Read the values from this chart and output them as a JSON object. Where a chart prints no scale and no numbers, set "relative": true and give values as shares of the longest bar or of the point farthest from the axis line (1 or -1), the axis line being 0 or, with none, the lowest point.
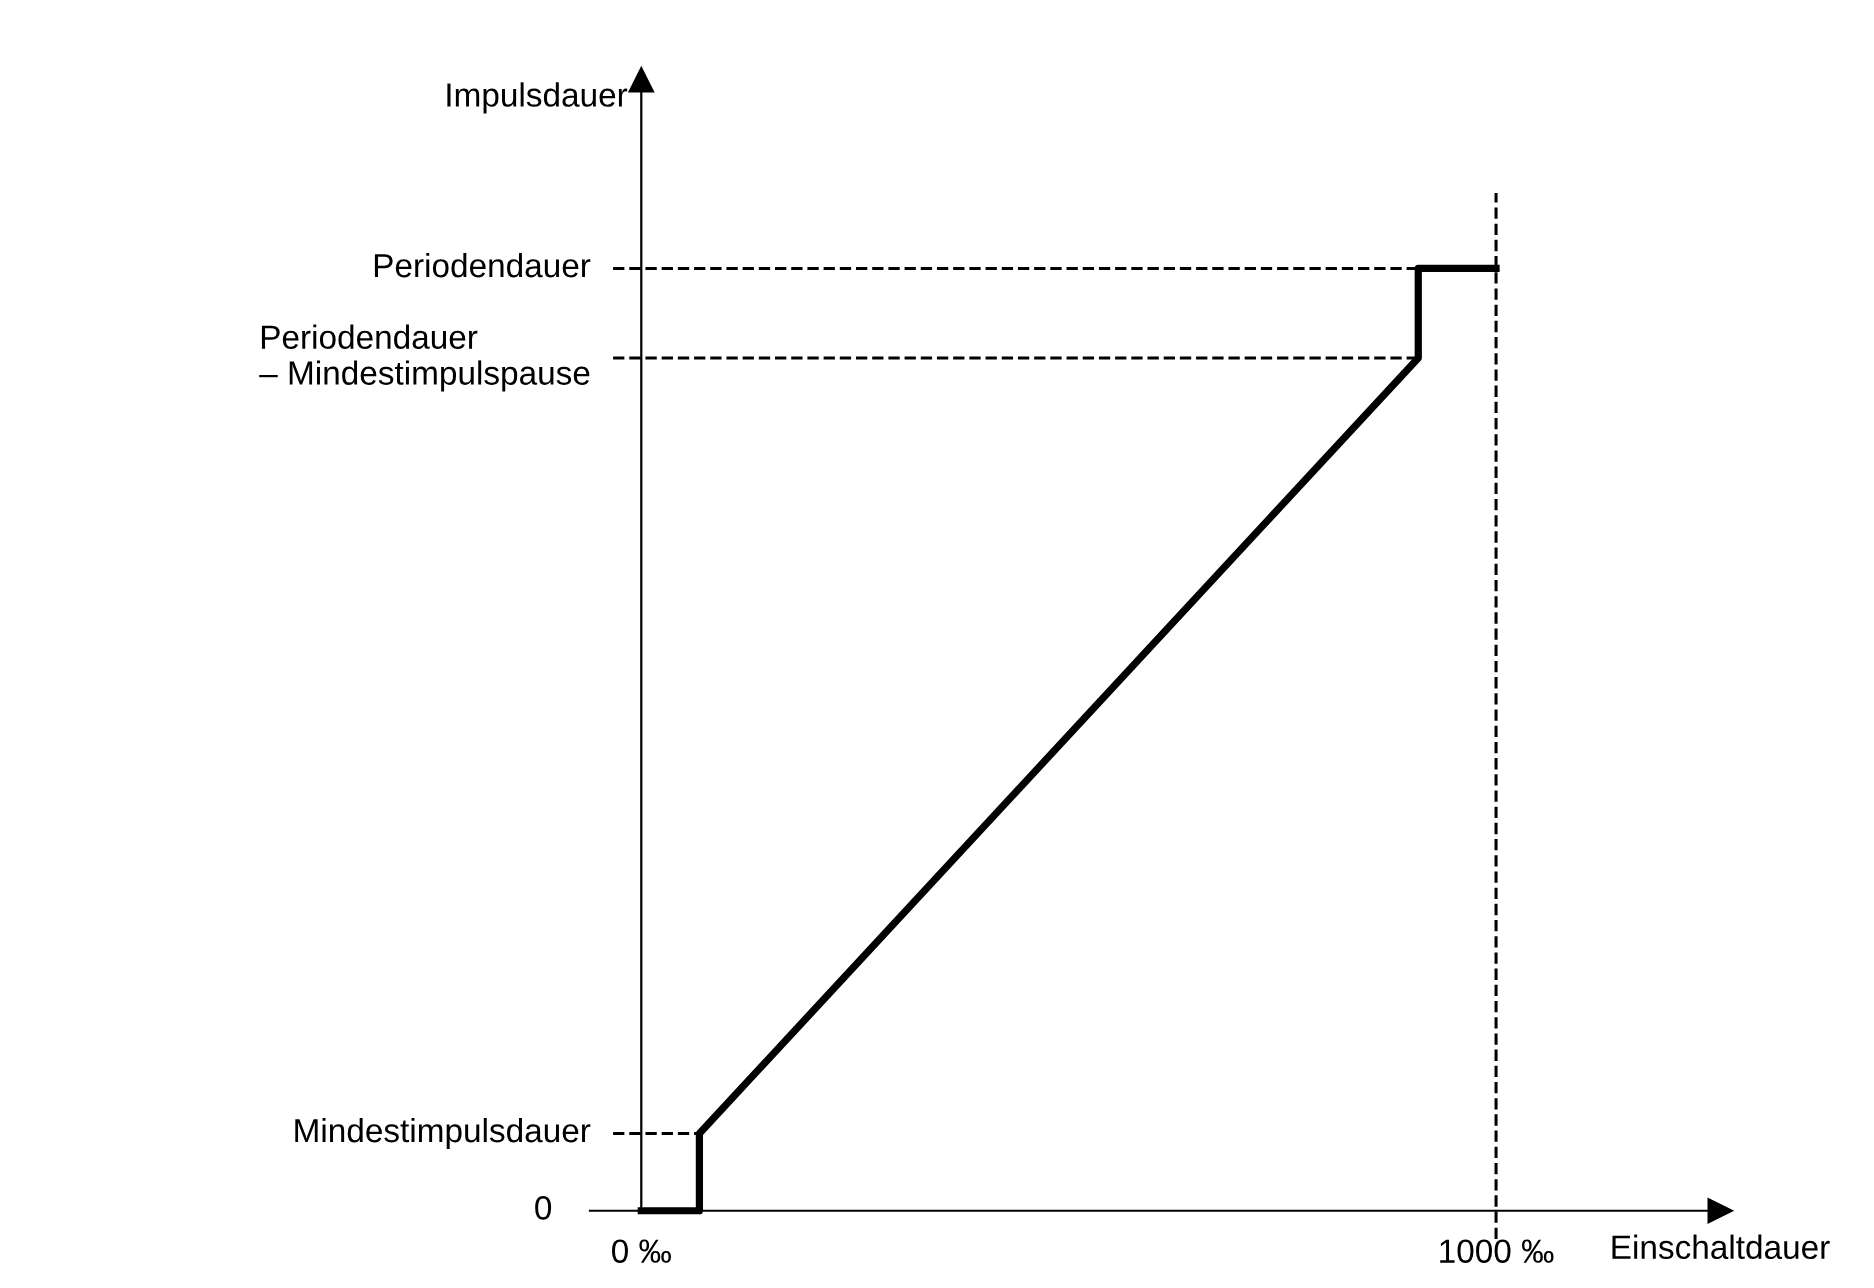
{
  "chart_data": {
    "type": "line",
    "relative": true,
    "xlabel": "Einschaltdauer",
    "ylabel": "Impulsdauer",
    "x": [
      0,
      68,
      68,
      909,
      909,
      1000
    ],
    "series": [
      {
        "color": "#000000",
        "values": [
          0,
          0,
          0.082,
          0.905,
          1,
          1
        ]
      }
    ],
    "xlim": [
      -60,
      1262
    ],
    "xticks": [
      {
        "value": 0,
        "label": "0 ‰"
      },
      {
        "value": 1000,
        "label": "1000 ‰"
      }
    ],
    "annotations": [
      {
        "text": "0",
        "x": 0,
        "y": 0
      }
    ],
    "ref_lines": [
      {
        "axis": "y",
        "value": 0.082,
        "label": "Mindestimpulsdauer",
        "line_style": "dashed",
        "color": "#000000"
      },
      {
        "axis": "y",
        "value": 0.905,
        "label": "Periodendauer\n– Mindestimpulspause",
        "line_style": "dashed",
        "color": "#000000"
      },
      {
        "axis": "y",
        "value": 1,
        "label": "Periodendauer",
        "line_style": "dashed",
        "color": "#000000"
      },
      {
        "axis": "x",
        "value": 1000,
        "line_style": "dashed",
        "color": "#000000"
      }
    ],
    "grid": false,
    "legend": false,
    "marker": "none",
    "line_style": "solid"
  }
}
